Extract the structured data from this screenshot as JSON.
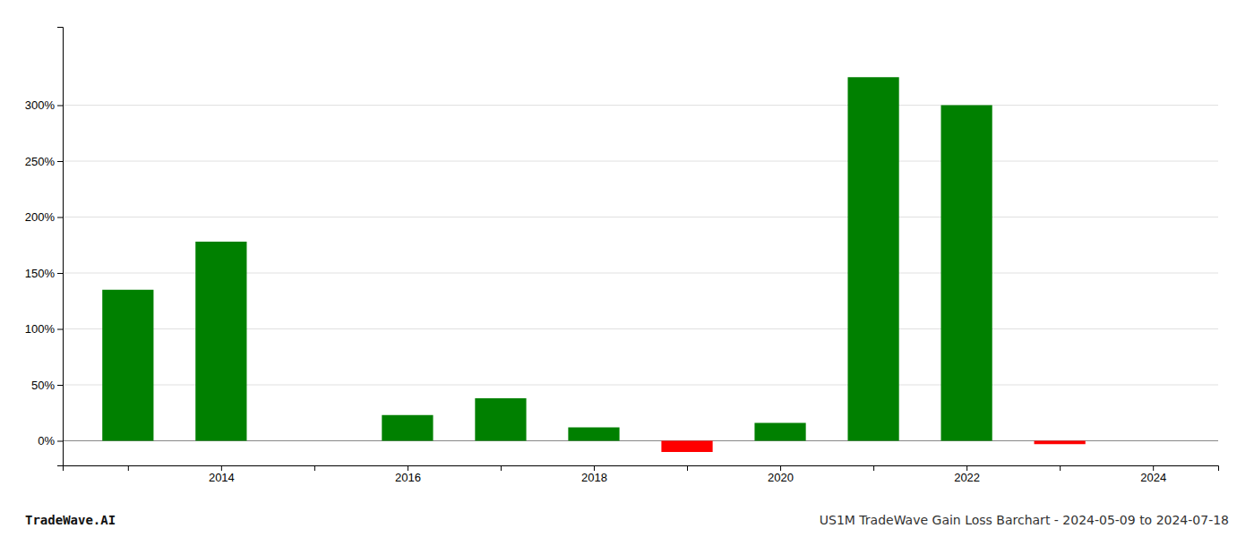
{
  "chart_data": {
    "type": "bar",
    "x": [
      2013,
      2014,
      2016,
      2017,
      2018,
      2019,
      2020,
      2021,
      2022,
      2023
    ],
    "values": [
      1.35,
      1.78,
      0.23,
      0.38,
      0.12,
      -0.1,
      0.16,
      3.25,
      3.0,
      -0.03
    ],
    "colors": [
      "#008000",
      "#008000",
      "#008000",
      "#008000",
      "#008000",
      "#ff0000",
      "#008000",
      "#008000",
      "#008000",
      "#ff0000"
    ],
    "xlim": [
      2012.3,
      2024.7
    ],
    "xticks": [
      {
        "value": 2013,
        "label": null
      },
      2014,
      {
        "value": 2015,
        "label": null
      },
      2016,
      {
        "value": 2017,
        "label": null
      },
      2018,
      {
        "value": 2019,
        "label": null
      },
      2020,
      {
        "value": 2021,
        "label": null
      },
      2022,
      {
        "value": 2023,
        "label": null
      },
      2024
    ],
    "ylim": [
      -0.22,
      3.7
    ],
    "yticks": [
      {
        "value": 0.0,
        "label": "0%"
      },
      {
        "value": 0.5,
        "label": "50%"
      },
      {
        "value": 1.0,
        "label": "100%"
      },
      {
        "value": 1.5,
        "label": "150%"
      },
      {
        "value": 2.0,
        "label": "200%"
      },
      {
        "value": 2.5,
        "label": "250%"
      },
      {
        "value": 3.0,
        "label": "300%"
      }
    ],
    "grid": true,
    "annotations": [
      "TradeWave.AI",
      "US1M TradeWave Gain Loss Barchart - 2024-05-09 to 2024-07-18"
    ]
  }
}
